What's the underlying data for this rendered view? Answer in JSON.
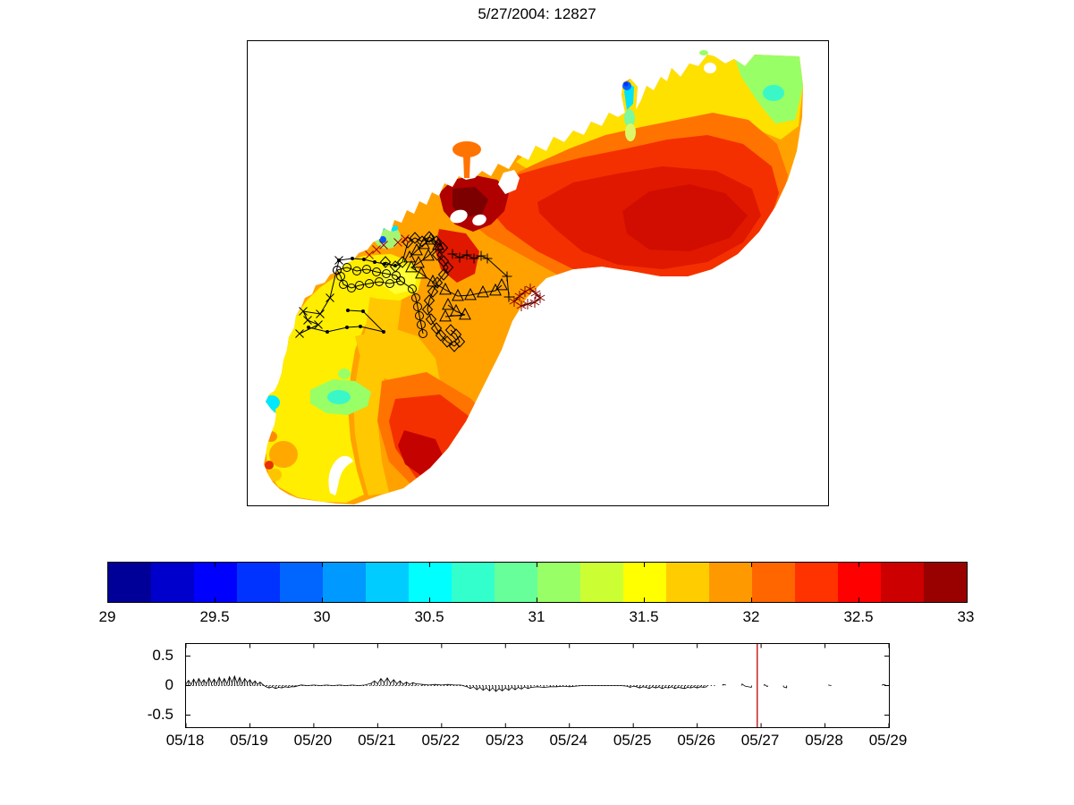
{
  "chart_data": [
    {
      "type": "heatmap",
      "title": "5/27/2004: 12827",
      "description": "Filled-contour scalar field (jet colormap, discrete bands) over a crescent-shaped coastal lagoon, with drifter/track overlays drawn as marked polylines",
      "value_range": [
        29,
        33
      ],
      "band_count": 20,
      "band_colors": [
        "#000099",
        "#0000CC",
        "#0000FF",
        "#0033FF",
        "#0066FF",
        "#0099FF",
        "#00CCFF",
        "#00FFFF",
        "#33FFCC",
        "#66FF99",
        "#99FF66",
        "#CCFF33",
        "#FFFF00",
        "#FFCC00",
        "#FF9900",
        "#FF6600",
        "#FF3300",
        "#FF0000",
        "#CC0000",
        "#990000"
      ],
      "colorbar_ticks": [
        "29",
        "29.5",
        "30",
        "30.5",
        "31",
        "31.5",
        "32",
        "32.5",
        "33"
      ],
      "track_coordinate_space": "map-pixels-649x519",
      "tracks": [
        {
          "name": "track-x",
          "marker": "x",
          "color": "#000000",
          "points": [
            [
              58,
              327
            ],
            [
              79,
              317
            ],
            [
              67,
              312
            ],
            [
              62,
              302
            ],
            [
              81,
              305
            ],
            [
              92,
              287
            ],
            [
              102,
              245
            ]
          ]
        },
        {
          "name": "track-dots-upper",
          "marker": "point",
          "color": "#000000",
          "points": [
            [
              102,
              245
            ],
            [
              117,
              243
            ],
            [
              130,
              244
            ],
            [
              142,
              247
            ],
            [
              153,
              249
            ],
            [
              165,
              251
            ]
          ]
        },
        {
          "name": "track-dots-lower",
          "marker": "point",
          "color": "#000000",
          "points": [
            [
              112,
              301
            ],
            [
              129,
              302
            ],
            [
              152,
              325
            ],
            [
              126,
              319
            ],
            [
              111,
              320
            ],
            [
              89,
              325
            ],
            [
              68,
              320
            ]
          ]
        },
        {
          "name": "track-circles",
          "marker": "circle",
          "color": "#000000",
          "points": [
            [
              100,
              256
            ],
            [
              111,
              253
            ],
            [
              122,
              257
            ],
            [
              133,
              255
            ],
            [
              144,
              258
            ],
            [
              155,
              260
            ],
            [
              166,
              262
            ],
            [
              171,
              268
            ],
            [
              159,
              271
            ],
            [
              147,
              269
            ],
            [
              136,
              271
            ],
            [
              125,
              273
            ],
            [
              116,
              276
            ],
            [
              107,
              272
            ],
            [
              104,
              263
            ],
            [
              100,
              256
            ]
          ]
        },
        {
          "name": "track-circles-column",
          "marker": "circle",
          "color": "#000000",
          "points": [
            [
              171,
              268
            ],
            [
              184,
              277
            ],
            [
              188,
              287
            ],
            [
              190,
              297
            ],
            [
              192,
              307
            ],
            [
              194,
              317
            ],
            [
              196,
              327
            ]
          ]
        },
        {
          "name": "track-triangles",
          "marker": "triangle",
          "color": "#000000",
          "points": [
            [
              181,
              242
            ],
            [
              189,
              234
            ],
            [
              197,
              227
            ],
            [
              205,
              222
            ],
            [
              213,
              228
            ],
            [
              202,
              240
            ],
            [
              191,
              248
            ],
            [
              183,
              253
            ],
            [
              194,
              260
            ],
            [
              207,
              269
            ],
            [
              221,
              278
            ],
            [
              235,
              285
            ],
            [
              249,
              284
            ],
            [
              263,
              281
            ],
            [
              277,
              279
            ],
            [
              284,
              273
            ]
          ]
        },
        {
          "name": "track-triangles-2",
          "marker": "triangle",
          "color": "#000000",
          "points": [
            [
              224,
              295
            ],
            [
              233,
              302
            ],
            [
              243,
              306
            ],
            [
              221,
              308
            ]
          ]
        },
        {
          "name": "track-diamonds",
          "marker": "diamond",
          "color": "#000000",
          "points": [
            [
              154,
              247
            ],
            [
              165,
              252
            ],
            [
              173,
              247
            ],
            [
              179,
              225
            ],
            [
              187,
              220
            ],
            [
              195,
              224
            ],
            [
              203,
              219
            ],
            [
              211,
              224
            ],
            [
              218,
              231
            ],
            [
              212,
              239
            ],
            [
              219,
              246
            ],
            [
              224,
              253
            ],
            [
              219,
              261
            ],
            [
              212,
              270
            ],
            [
              207,
              280
            ],
            [
              203,
              290
            ],
            [
              201,
              300
            ],
            [
              205,
              311
            ],
            [
              211,
              321
            ],
            [
              216,
              329
            ],
            [
              223,
              336
            ],
            [
              231,
              341
            ],
            [
              237,
              336
            ],
            [
              233,
              328
            ],
            [
              227,
              323
            ]
          ]
        },
        {
          "name": "track-plus",
          "marker": "plus",
          "color": "#000000",
          "points": [
            [
              229,
              238
            ],
            [
              237,
              242
            ],
            [
              245,
              239
            ],
            [
              253,
              243
            ],
            [
              261,
              240
            ],
            [
              268,
              243
            ],
            [
              290,
              263
            ],
            [
              292,
              286
            ]
          ]
        },
        {
          "name": "track-red-x",
          "marker": "x",
          "color": "#A00000",
          "line": false,
          "points": [
            [
              136,
              239
            ],
            [
              144,
              233
            ],
            [
              152,
              228
            ],
            [
              168,
              225
            ],
            [
              176,
              221
            ]
          ]
        },
        {
          "name": "track-red-asterisk",
          "marker": "asterisk",
          "color": "#8B0000",
          "points": [
            [
              298,
              291
            ],
            [
              304,
              285
            ],
            [
              310,
              280
            ],
            [
              316,
              277
            ],
            [
              322,
              282
            ],
            [
              327,
              287
            ],
            [
              321,
              292
            ],
            [
              313,
              294
            ],
            [
              306,
              296
            ]
          ]
        }
      ]
    },
    {
      "type": "line",
      "x_tick_labels": [
        "05/18",
        "05/19",
        "05/20",
        "05/21",
        "05/22",
        "05/23",
        "05/24",
        "05/25",
        "05/26",
        "05/27",
        "05/28",
        "05/29"
      ],
      "y_tick_labels": [
        "0.5",
        "0",
        "-0.5"
      ],
      "y_ticks": [
        0.5,
        0,
        -0.5
      ],
      "ylim": [
        -0.7,
        0.7
      ],
      "x_range_days": [
        0,
        11
      ],
      "baseline": "dotted-zero-line",
      "baseline_extent_days": [
        0,
        8.3
      ],
      "time_marker_day": 8.94,
      "time_marker_color": "#C00000",
      "samples": [
        [
          0.0,
          0.03
        ],
        [
          0.04,
          0.09
        ],
        [
          0.08,
          0.02
        ],
        [
          0.12,
          0.11
        ],
        [
          0.16,
          0.03
        ],
        [
          0.2,
          0.12
        ],
        [
          0.24,
          0.04
        ],
        [
          0.28,
          0.1
        ],
        [
          0.32,
          0.03
        ],
        [
          0.36,
          0.13
        ],
        [
          0.4,
          0.04
        ],
        [
          0.44,
          0.11
        ],
        [
          0.48,
          0.03
        ],
        [
          0.52,
          0.14
        ],
        [
          0.56,
          0.04
        ],
        [
          0.6,
          0.12
        ],
        [
          0.64,
          0.03
        ],
        [
          0.68,
          0.15
        ],
        [
          0.72,
          0.05
        ],
        [
          0.76,
          0.16
        ],
        [
          0.8,
          0.04
        ],
        [
          0.84,
          0.14
        ],
        [
          0.88,
          0.03
        ],
        [
          0.92,
          0.12
        ],
        [
          0.96,
          0.05
        ],
        [
          1.0,
          0.1
        ],
        [
          1.04,
          0.03
        ],
        [
          1.08,
          0.08
        ],
        [
          1.12,
          0.02
        ],
        [
          1.16,
          0.06
        ],
        [
          1.2,
          0.02
        ],
        [
          1.25,
          -0.02
        ],
        [
          1.3,
          -0.04
        ],
        [
          1.35,
          -0.02
        ],
        [
          1.4,
          -0.05
        ],
        [
          1.45,
          -0.03
        ],
        [
          1.5,
          -0.04
        ],
        [
          1.55,
          -0.02
        ],
        [
          1.6,
          -0.03
        ],
        [
          1.65,
          -0.02
        ],
        [
          1.7,
          -0.02
        ],
        [
          1.8,
          0.01
        ],
        [
          1.9,
          0.0
        ],
        [
          2.0,
          0.01
        ],
        [
          2.1,
          0.0
        ],
        [
          2.2,
          0.01
        ],
        [
          2.3,
          0.0
        ],
        [
          2.4,
          0.01
        ],
        [
          2.5,
          0.0
        ],
        [
          2.6,
          0.01
        ],
        [
          2.7,
          0.0
        ],
        [
          2.8,
          0.01
        ],
        [
          2.9,
          0.04
        ],
        [
          2.95,
          0.08
        ],
        [
          3.0,
          0.03
        ],
        [
          3.05,
          0.12
        ],
        [
          3.1,
          0.05
        ],
        [
          3.15,
          0.13
        ],
        [
          3.2,
          0.04
        ],
        [
          3.25,
          0.1
        ],
        [
          3.3,
          0.03
        ],
        [
          3.35,
          0.08
        ],
        [
          3.4,
          0.02
        ],
        [
          3.45,
          0.06
        ],
        [
          3.5,
          0.02
        ],
        [
          3.55,
          0.05
        ],
        [
          3.6,
          0.03
        ],
        [
          3.7,
          0.02
        ],
        [
          3.8,
          0.01
        ],
        [
          3.9,
          0.02
        ],
        [
          4.0,
          0.01
        ],
        [
          4.1,
          0.02
        ],
        [
          4.2,
          0.01
        ],
        [
          4.3,
          0.01
        ],
        [
          4.4,
          -0.02
        ],
        [
          4.45,
          -0.05
        ],
        [
          4.5,
          -0.02
        ],
        [
          4.55,
          -0.07
        ],
        [
          4.6,
          -0.03
        ],
        [
          4.65,
          -0.08
        ],
        [
          4.7,
          -0.04
        ],
        [
          4.75,
          -0.09
        ],
        [
          4.8,
          -0.04
        ],
        [
          4.85,
          -0.1
        ],
        [
          4.9,
          -0.05
        ],
        [
          4.95,
          -0.09
        ],
        [
          5.0,
          -0.04
        ],
        [
          5.05,
          -0.08
        ],
        [
          5.1,
          -0.03
        ],
        [
          5.15,
          -0.07
        ],
        [
          5.2,
          -0.03
        ],
        [
          5.25,
          -0.06
        ],
        [
          5.3,
          -0.02
        ],
        [
          5.35,
          -0.05
        ],
        [
          5.4,
          -0.03
        ],
        [
          5.5,
          -0.02
        ],
        [
          5.6,
          -0.03
        ],
        [
          5.7,
          -0.02
        ],
        [
          5.8,
          -0.02
        ],
        [
          5.9,
          -0.01
        ],
        [
          6.0,
          -0.02
        ],
        [
          6.1,
          -0.01
        ],
        [
          6.2,
          0.0
        ],
        [
          6.3,
          0.0
        ],
        [
          6.4,
          0.0
        ],
        [
          6.5,
          0.0
        ],
        [
          6.6,
          0.0
        ],
        [
          6.7,
          0.0
        ],
        [
          6.8,
          0.0
        ],
        [
          6.9,
          -0.01
        ],
        [
          6.95,
          -0.03
        ],
        [
          7.0,
          -0.01
        ],
        [
          7.05,
          -0.02
        ],
        [
          7.1,
          -0.04
        ],
        [
          7.15,
          -0.02
        ],
        [
          7.2,
          -0.03
        ],
        [
          7.25,
          -0.05
        ],
        [
          7.3,
          -0.02
        ],
        [
          7.35,
          -0.04
        ],
        [
          7.4,
          -0.02
        ],
        [
          7.45,
          -0.05
        ],
        [
          7.5,
          -0.03
        ],
        [
          7.55,
          -0.04
        ],
        [
          7.6,
          -0.02
        ],
        [
          7.65,
          -0.05
        ],
        [
          7.7,
          -0.03
        ],
        [
          7.75,
          -0.04
        ],
        [
          7.8,
          -0.05
        ],
        [
          7.85,
          -0.03
        ],
        [
          7.9,
          -0.04
        ],
        [
          7.95,
          -0.02
        ],
        [
          8.0,
          -0.04
        ],
        [
          8.05,
          -0.02
        ],
        [
          8.1,
          -0.03
        ],
        [
          8.15,
          -0.02
        ],
        [
          8.4,
          0.02
        ],
        [
          8.45,
          0.01
        ],
        [
          8.7,
          0.03
        ],
        [
          8.75,
          -0.01
        ],
        [
          8.85,
          -0.03
        ],
        [
          9.05,
          0.02
        ],
        [
          9.1,
          -0.02
        ],
        [
          9.35,
          -0.02
        ],
        [
          9.4,
          -0.04
        ],
        [
          9.75,
          -0.01
        ],
        [
          10.05,
          0.01
        ],
        [
          10.1,
          0.0
        ],
        [
          10.9,
          0.02
        ],
        [
          10.95,
          0.01
        ]
      ]
    }
  ]
}
